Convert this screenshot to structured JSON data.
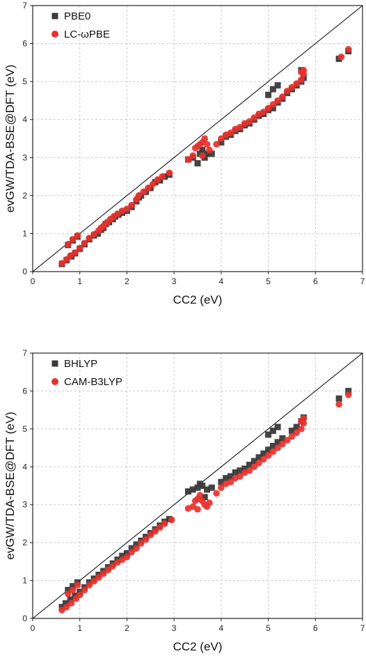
{
  "chart_data": [
    {
      "type": "scatter",
      "title": "",
      "xlabel": "CC2 (eV)",
      "ylabel": "evGW/TDA-BSE@DFT (eV)",
      "xlim": [
        0,
        7
      ],
      "ylim": [
        0,
        7
      ],
      "xticks": [
        "0",
        "1",
        "2",
        "3",
        "4",
        "5",
        "6",
        "7"
      ],
      "yticks": [
        "0",
        "1",
        "2",
        "3",
        "4",
        "5",
        "6",
        "7"
      ],
      "grid": true,
      "legend_position": "top-left",
      "reference_line": "y = x",
      "series": [
        {
          "name": "PBE0",
          "marker": "square",
          "color": "#3a3a3a",
          "points": [
            [
              0.62,
              0.2
            ],
            [
              0.72,
              0.3
            ],
            [
              0.82,
              0.4
            ],
            [
              0.9,
              0.48
            ],
            [
              1.0,
              0.6
            ],
            [
              1.1,
              0.72
            ],
            [
              1.2,
              0.85
            ],
            [
              1.3,
              0.95
            ],
            [
              1.38,
              1.0
            ],
            [
              1.45,
              1.1
            ],
            [
              1.5,
              1.15
            ],
            [
              1.55,
              1.25
            ],
            [
              1.62,
              1.3
            ],
            [
              1.7,
              1.38
            ],
            [
              1.75,
              1.45
            ],
            [
              1.82,
              1.5
            ],
            [
              1.9,
              1.55
            ],
            [
              2.0,
              1.6
            ],
            [
              2.1,
              1.7
            ],
            [
              2.2,
              1.85
            ],
            [
              2.25,
              1.95
            ],
            [
              2.3,
              2.0
            ],
            [
              2.4,
              2.1
            ],
            [
              2.5,
              2.2
            ],
            [
              2.6,
              2.35
            ],
            [
              2.7,
              2.4
            ],
            [
              2.8,
              2.5
            ],
            [
              2.9,
              2.55
            ],
            [
              3.3,
              2.95
            ],
            [
              3.4,
              3.0
            ],
            [
              3.5,
              2.85
            ],
            [
              3.55,
              3.1
            ],
            [
              3.6,
              3.2
            ],
            [
              3.65,
              3.0
            ],
            [
              3.7,
              3.1
            ],
            [
              3.8,
              3.1
            ],
            [
              4.0,
              3.4
            ],
            [
              4.1,
              3.55
            ],
            [
              4.2,
              3.6
            ],
            [
              4.3,
              3.7
            ],
            [
              4.4,
              3.75
            ],
            [
              4.5,
              3.85
            ],
            [
              4.6,
              3.9
            ],
            [
              4.7,
              4.0
            ],
            [
              4.8,
              4.1
            ],
            [
              4.9,
              4.15
            ],
            [
              5.0,
              4.25
            ],
            [
              5.1,
              4.3
            ],
            [
              5.2,
              4.45
            ],
            [
              5.3,
              4.55
            ],
            [
              5.4,
              4.7
            ],
            [
              5.5,
              4.8
            ],
            [
              5.6,
              4.9
            ],
            [
              5.7,
              5.0
            ],
            [
              5.75,
              5.1
            ],
            [
              5.0,
              4.65
            ],
            [
              5.1,
              4.8
            ],
            [
              5.2,
              4.9
            ],
            [
              5.7,
              5.3
            ],
            [
              6.5,
              5.6
            ],
            [
              6.7,
              5.8
            ],
            [
              0.75,
              0.7
            ],
            [
              0.85,
              0.82
            ],
            [
              0.95,
              0.92
            ]
          ]
        },
        {
          "name": "LC-ωPBE",
          "marker": "circle",
          "color": "#e8312d",
          "points": [
            [
              0.62,
              0.22
            ],
            [
              0.72,
              0.32
            ],
            [
              0.8,
              0.42
            ],
            [
              0.9,
              0.5
            ],
            [
              1.0,
              0.62
            ],
            [
              1.1,
              0.75
            ],
            [
              1.2,
              0.88
            ],
            [
              1.3,
              0.98
            ],
            [
              1.4,
              1.08
            ],
            [
              1.45,
              1.15
            ],
            [
              1.5,
              1.2
            ],
            [
              1.58,
              1.3
            ],
            [
              1.65,
              1.38
            ],
            [
              1.72,
              1.45
            ],
            [
              1.8,
              1.52
            ],
            [
              1.9,
              1.6
            ],
            [
              2.0,
              1.65
            ],
            [
              2.1,
              1.75
            ],
            [
              2.2,
              1.9
            ],
            [
              2.25,
              2.0
            ],
            [
              2.35,
              2.1
            ],
            [
              2.45,
              2.2
            ],
            [
              2.55,
              2.3
            ],
            [
              2.65,
              2.42
            ],
            [
              2.75,
              2.5
            ],
            [
              2.9,
              2.6
            ],
            [
              3.3,
              2.95
            ],
            [
              3.4,
              3.05
            ],
            [
              3.45,
              3.25
            ],
            [
              3.5,
              3.3
            ],
            [
              3.55,
              3.35
            ],
            [
              3.6,
              3.4
            ],
            [
              3.65,
              3.5
            ],
            [
              3.7,
              3.35
            ],
            [
              3.75,
              3.2
            ],
            [
              3.6,
              3.05
            ],
            [
              3.9,
              3.35
            ],
            [
              4.0,
              3.5
            ],
            [
              4.1,
              3.6
            ],
            [
              4.2,
              3.65
            ],
            [
              4.3,
              3.75
            ],
            [
              4.4,
              3.8
            ],
            [
              4.5,
              3.9
            ],
            [
              4.6,
              3.95
            ],
            [
              4.7,
              4.05
            ],
            [
              4.8,
              4.15
            ],
            [
              4.9,
              4.2
            ],
            [
              5.0,
              4.3
            ],
            [
              5.1,
              4.4
            ],
            [
              5.2,
              4.5
            ],
            [
              5.3,
              4.6
            ],
            [
              5.4,
              4.75
            ],
            [
              5.5,
              4.85
            ],
            [
              5.6,
              4.95
            ],
            [
              5.7,
              5.05
            ],
            [
              5.75,
              5.2
            ],
            [
              5.7,
              5.25
            ],
            [
              5.75,
              5.3
            ],
            [
              6.55,
              5.65
            ],
            [
              6.7,
              5.85
            ],
            [
              0.75,
              0.72
            ],
            [
              0.85,
              0.85
            ],
            [
              0.95,
              0.95
            ]
          ]
        }
      ]
    },
    {
      "type": "scatter",
      "title": "",
      "xlabel": "CC2 (eV)",
      "ylabel": "evGW/TDA-BSE@DFT (eV)",
      "xlim": [
        0,
        7
      ],
      "ylim": [
        0,
        7
      ],
      "xticks": [
        "0",
        "1",
        "2",
        "3",
        "4",
        "5",
        "6",
        "7"
      ],
      "yticks": [
        "0",
        "1",
        "2",
        "3",
        "4",
        "5",
        "6",
        "7"
      ],
      "grid": true,
      "legend_position": "top-left",
      "reference_line": "y = x",
      "series": [
        {
          "name": "BHLYP",
          "marker": "square",
          "color": "#3a3a3a",
          "points": [
            [
              0.62,
              0.3
            ],
            [
              0.7,
              0.4
            ],
            [
              0.8,
              0.5
            ],
            [
              0.9,
              0.6
            ],
            [
              1.0,
              0.7
            ],
            [
              1.1,
              0.82
            ],
            [
              1.2,
              0.95
            ],
            [
              1.3,
              1.05
            ],
            [
              1.4,
              1.15
            ],
            [
              1.5,
              1.25
            ],
            [
              1.6,
              1.35
            ],
            [
              1.7,
              1.45
            ],
            [
              1.8,
              1.55
            ],
            [
              1.9,
              1.65
            ],
            [
              2.0,
              1.72
            ],
            [
              2.1,
              1.85
            ],
            [
              2.2,
              1.95
            ],
            [
              2.3,
              2.05
            ],
            [
              2.4,
              2.15
            ],
            [
              2.5,
              2.25
            ],
            [
              2.6,
              2.35
            ],
            [
              2.7,
              2.45
            ],
            [
              2.8,
              2.55
            ],
            [
              2.9,
              2.62
            ],
            [
              3.3,
              3.35
            ],
            [
              3.4,
              3.4
            ],
            [
              3.5,
              3.45
            ],
            [
              3.55,
              3.55
            ],
            [
              3.6,
              3.5
            ],
            [
              3.7,
              3.4
            ],
            [
              3.65,
              3.2
            ],
            [
              3.8,
              3.45
            ],
            [
              4.0,
              3.6
            ],
            [
              4.1,
              3.7
            ],
            [
              4.2,
              3.75
            ],
            [
              4.3,
              3.85
            ],
            [
              4.4,
              3.9
            ],
            [
              4.5,
              3.95
            ],
            [
              4.6,
              4.05
            ],
            [
              4.7,
              4.15
            ],
            [
              4.8,
              4.25
            ],
            [
              4.9,
              4.35
            ],
            [
              5.0,
              4.45
            ],
            [
              5.1,
              4.55
            ],
            [
              5.2,
              4.65
            ],
            [
              5.3,
              4.75
            ],
            [
              5.0,
              4.85
            ],
            [
              5.1,
              4.95
            ],
            [
              5.2,
              5.05
            ],
            [
              5.5,
              4.95
            ],
            [
              5.6,
              5.05
            ],
            [
              5.7,
              5.2
            ],
            [
              5.75,
              5.3
            ],
            [
              6.5,
              5.8
            ],
            [
              6.7,
              6.0
            ],
            [
              0.75,
              0.75
            ],
            [
              0.85,
              0.85
            ],
            [
              0.95,
              0.95
            ]
          ]
        },
        {
          "name": "CAM-B3LYP",
          "marker": "circle",
          "color": "#e8312d",
          "points": [
            [
              0.62,
              0.22
            ],
            [
              0.72,
              0.3
            ],
            [
              0.82,
              0.4
            ],
            [
              0.92,
              0.52
            ],
            [
              1.0,
              0.62
            ],
            [
              1.1,
              0.75
            ],
            [
              1.2,
              0.88
            ],
            [
              1.3,
              0.98
            ],
            [
              1.4,
              1.08
            ],
            [
              1.5,
              1.18
            ],
            [
              1.6,
              1.28
            ],
            [
              1.7,
              1.38
            ],
            [
              1.8,
              1.48
            ],
            [
              1.9,
              1.55
            ],
            [
              2.0,
              1.62
            ],
            [
              2.1,
              1.75
            ],
            [
              2.2,
              1.85
            ],
            [
              2.3,
              1.98
            ],
            [
              2.4,
              2.08
            ],
            [
              2.5,
              2.2
            ],
            [
              2.6,
              2.3
            ],
            [
              2.7,
              2.4
            ],
            [
              2.8,
              2.5
            ],
            [
              2.95,
              2.6
            ],
            [
              3.3,
              2.9
            ],
            [
              3.4,
              2.95
            ],
            [
              3.45,
              3.1
            ],
            [
              3.5,
              3.15
            ],
            [
              3.55,
              3.25
            ],
            [
              3.6,
              3.1
            ],
            [
              3.65,
              3.0
            ],
            [
              3.7,
              2.95
            ],
            [
              3.75,
              3.05
            ],
            [
              3.5,
              2.88
            ],
            [
              3.9,
              3.3
            ],
            [
              4.0,
              3.45
            ],
            [
              4.1,
              3.55
            ],
            [
              4.2,
              3.6
            ],
            [
              4.3,
              3.7
            ],
            [
              4.4,
              3.75
            ],
            [
              4.5,
              3.85
            ],
            [
              4.6,
              3.9
            ],
            [
              4.7,
              4.0
            ],
            [
              4.8,
              4.1
            ],
            [
              4.9,
              4.2
            ],
            [
              5.0,
              4.3
            ],
            [
              5.1,
              4.4
            ],
            [
              5.2,
              4.5
            ],
            [
              5.3,
              4.6
            ],
            [
              5.4,
              4.7
            ],
            [
              5.5,
              4.8
            ],
            [
              5.6,
              4.9
            ],
            [
              5.7,
              5.0
            ],
            [
              5.75,
              5.15
            ],
            [
              5.7,
              5.2
            ],
            [
              5.75,
              5.28
            ],
            [
              6.5,
              5.65
            ],
            [
              6.7,
              5.9
            ],
            [
              0.75,
              0.65
            ],
            [
              0.85,
              0.75
            ],
            [
              0.95,
              0.88
            ]
          ]
        }
      ]
    }
  ]
}
